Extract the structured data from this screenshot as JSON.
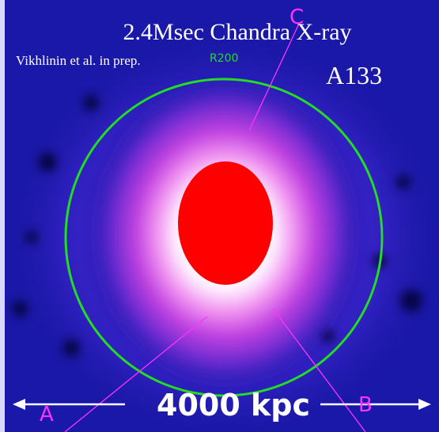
{
  "image": {
    "title": "2.4Msec Chandra X-ray",
    "credit": "Vikhlinin et al. in prep.",
    "object": "A133",
    "circle_label": "R200",
    "scale_bar": "4000 kpc",
    "markers": [
      "A",
      "B",
      "C"
    ]
  }
}
